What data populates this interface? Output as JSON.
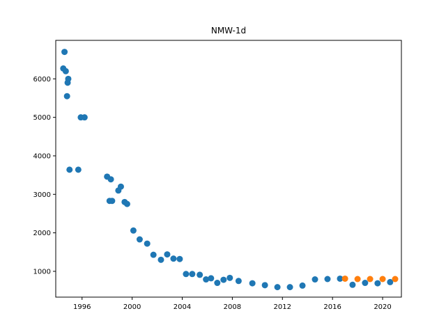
{
  "chart_data": {
    "type": "scatter",
    "title": "NMW-1d",
    "xlabel": "",
    "ylabel": "",
    "xlim": [
      1993.9,
      2021.5
    ],
    "ylim": [
      330,
      7000
    ],
    "x_ticks": [
      1996,
      2000,
      2004,
      2008,
      2012,
      2016,
      2020
    ],
    "y_ticks": [
      1000,
      2000,
      3000,
      4000,
      5000,
      6000
    ],
    "grid": false,
    "legend": "none",
    "colors": {
      "series1": "#1f77b4",
      "series2": "#ff7f0e"
    },
    "series": [
      {
        "x": [
          1994.5,
          1994.6,
          1994.7,
          1994.8,
          1994.85,
          1994.9,
          1995.0,
          1995.7,
          1995.9,
          1996.2,
          1998.0,
          1998.2,
          1998.3,
          1998.4,
          1998.9,
          1999.1,
          1999.4,
          1999.6,
          2000.1,
          2000.6,
          2001.2,
          2001.7,
          2002.3,
          2002.8,
          2003.3,
          2003.8,
          2004.3,
          2004.8,
          2005.4,
          2005.9,
          2006.3,
          2006.8,
          2007.3,
          2007.8,
          2008.5,
          2009.6,
          2010.6,
          2011.6,
          2012.6,
          2013.6,
          2014.6,
          2015.6,
          2016.6,
          2017.6,
          2018.6,
          2019.6,
          2020.6
        ],
        "y": [
          6270,
          6700,
          6200,
          5550,
          5900,
          6000,
          3640,
          3640,
          5000,
          5000,
          3460,
          2830,
          3390,
          2830,
          3100,
          3200,
          2800,
          2750,
          2060,
          1830,
          1720,
          1430,
          1300,
          1440,
          1330,
          1320,
          930,
          930,
          910,
          790,
          820,
          700,
          780,
          830,
          750,
          690,
          640,
          590,
          590,
          630,
          790,
          800,
          810,
          650,
          700,
          690,
          720
        ]
      },
      {
        "x": [
          2017.0,
          2018.0,
          2019.0,
          2020.0,
          2021.0
        ],
        "y": [
          810,
          800,
          800,
          800,
          800
        ]
      }
    ]
  }
}
